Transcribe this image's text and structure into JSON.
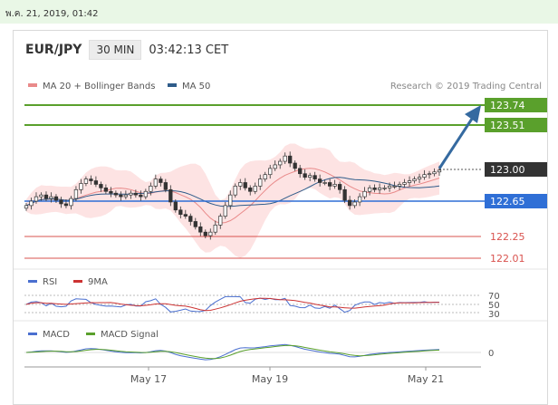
{
  "topbar": {
    "date": "พ.ค. 21, 2019, 01:42"
  },
  "header": {
    "pair": "EUR/JPY",
    "timeframe": "30 MIN",
    "time": "03:42:13 CET"
  },
  "legend": {
    "ma20": "MA 20 + Bollinger Bands",
    "ma50": "MA 50",
    "credit": "Research © 2019 Trading Central"
  },
  "colors": {
    "support": "#d9534f",
    "resistance": "#5aa02c",
    "pivot": "#2f6fd6",
    "ma50": "#2f5c8a",
    "ma20": "#e98a8a",
    "band": "#fde3e3",
    "arrow": "#356aa0"
  },
  "chart_data": [
    {
      "type": "candlestick",
      "price_ylim": [
        121.9,
        123.9
      ],
      "x": [
        "May 17",
        "May 19",
        "May 21"
      ],
      "levels": [
        {
          "value": 123.74,
          "label": "123.74",
          "kind": "resistance"
        },
        {
          "value": 123.51,
          "label": "123.51",
          "kind": "resistance"
        },
        {
          "value": 123.0,
          "label": "123.00",
          "kind": "current"
        },
        {
          "value": 122.65,
          "label": "122.65",
          "kind": "pivot"
        },
        {
          "value": 122.25,
          "label": "122.25",
          "kind": "support"
        },
        {
          "value": 122.01,
          "label": "122.01",
          "kind": "support"
        }
      ],
      "close_path": [
        122.6,
        122.65,
        122.7,
        122.72,
        122.68,
        122.7,
        122.66,
        122.62,
        122.6,
        122.68,
        122.78,
        122.85,
        122.9,
        122.88,
        122.84,
        122.8,
        122.76,
        122.74,
        122.72,
        122.7,
        122.72,
        122.74,
        122.72,
        122.7,
        122.76,
        122.82,
        122.9,
        122.86,
        122.78,
        122.64,
        122.55,
        122.5,
        122.48,
        122.42,
        122.36,
        122.3,
        122.26,
        122.3,
        122.38,
        122.48,
        122.6,
        122.72,
        122.82,
        122.86,
        122.8,
        122.76,
        122.82,
        122.9,
        122.95,
        123.02,
        123.06,
        123.1,
        123.16,
        123.08,
        123.02,
        122.96,
        122.92,
        122.94,
        122.9,
        122.86,
        122.86,
        122.82,
        122.84,
        122.78,
        122.66,
        122.6,
        122.64,
        122.7,
        122.76,
        122.8,
        122.78,
        122.8,
        122.8,
        122.82,
        122.82,
        122.84,
        122.86,
        122.88,
        122.9,
        122.92,
        122.95,
        122.96,
        122.98,
        123.0
      ]
    },
    {
      "type": "line",
      "title": "RSI",
      "legend": [
        "RSI",
        "9MA"
      ],
      "y_ticks": [
        "70",
        "50",
        "30"
      ],
      "ylim": [
        25,
        75
      ]
    },
    {
      "type": "line",
      "title": "MACD",
      "legend": [
        "MACD",
        "MACD Signal"
      ],
      "y_ticks": [
        "0"
      ]
    }
  ]
}
